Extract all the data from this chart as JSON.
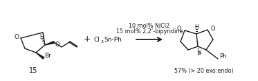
{
  "fig_width": 3.73,
  "fig_height": 1.17,
  "dpi": 100,
  "bg_color": "#ffffff",
  "line_color": "#1a1a1a",
  "lw": 1.0,
  "condition_line1": "10 mol% NiCl2",
  "condition_line2": "15 mol% 2,2’-bipyridine",
  "label_15": "15",
  "yield_text": "57% (> 20 exo:endo)",
  "font_size_cond": 5.8,
  "font_size_atom": 6.5,
  "font_size_sub": 4.5,
  "font_size_label": 7.0
}
